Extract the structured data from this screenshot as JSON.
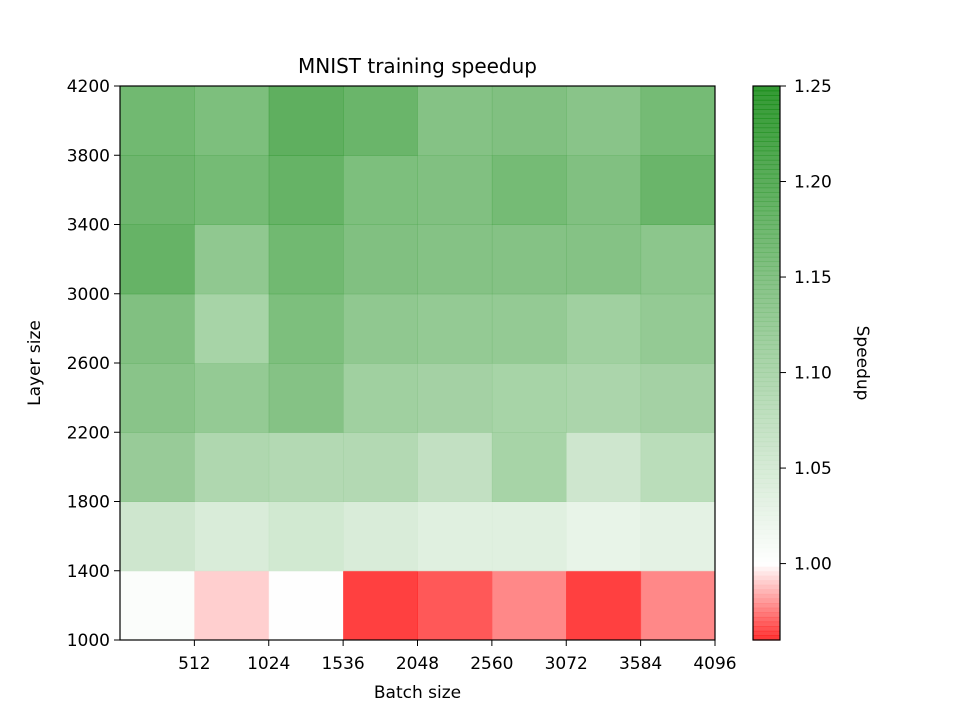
{
  "chart_data": {
    "type": "heatmap",
    "title": "MNIST training speedup",
    "xlabel": "Batch size",
    "ylabel": "Layer size",
    "x_tick_labels": [
      "512",
      "1024",
      "1536",
      "2048",
      "2560",
      "3072",
      "3584",
      "4096"
    ],
    "y_tick_labels": [
      "1000",
      "1400",
      "1800",
      "2200",
      "2600",
      "3000",
      "3400",
      "3800",
      "4200"
    ],
    "x_categories": [
      512,
      1024,
      1536,
      2048,
      2560,
      3072,
      3584,
      4096
    ],
    "y_bins": [
      [
        1000,
        1400
      ],
      [
        1400,
        1800
      ],
      [
        1800,
        2200
      ],
      [
        2200,
        2600
      ],
      [
        2600,
        3000
      ],
      [
        3000,
        3400
      ],
      [
        3400,
        3800
      ],
      [
        3800,
        4200
      ]
    ],
    "values": [
      [
        1.005,
        0.99,
        1.002,
        0.96,
        0.965,
        0.975,
        0.96,
        0.975
      ],
      [
        1.065,
        1.05,
        1.06,
        1.05,
        1.04,
        1.04,
        1.03,
        1.035
      ],
      [
        1.135,
        1.105,
        1.1,
        1.1,
        1.08,
        1.115,
        1.065,
        1.09
      ],
      [
        1.155,
        1.14,
        1.16,
        1.125,
        1.12,
        1.115,
        1.11,
        1.12
      ],
      [
        1.165,
        1.115,
        1.17,
        1.145,
        1.14,
        1.14,
        1.125,
        1.14
      ],
      [
        1.2,
        1.145,
        1.185,
        1.165,
        1.16,
        1.16,
        1.16,
        1.15
      ],
      [
        1.19,
        1.18,
        1.2,
        1.17,
        1.165,
        1.18,
        1.165,
        1.195
      ],
      [
        1.185,
        1.17,
        1.21,
        1.195,
        1.16,
        1.165,
        1.155,
        1.18
      ]
    ],
    "colorbar": {
      "label": "Speedup",
      "min": 0.96,
      "max": 1.25,
      "center": 1.0,
      "ticks": [
        1.0,
        1.05,
        1.1,
        1.15,
        1.2,
        1.25
      ],
      "tick_labels": [
        "1.00",
        "1.05",
        "1.10",
        "1.15",
        "1.20",
        "1.25"
      ],
      "low_color": "#ff0000",
      "mid_color": "#ffffff",
      "high_color": "#008000"
    }
  }
}
